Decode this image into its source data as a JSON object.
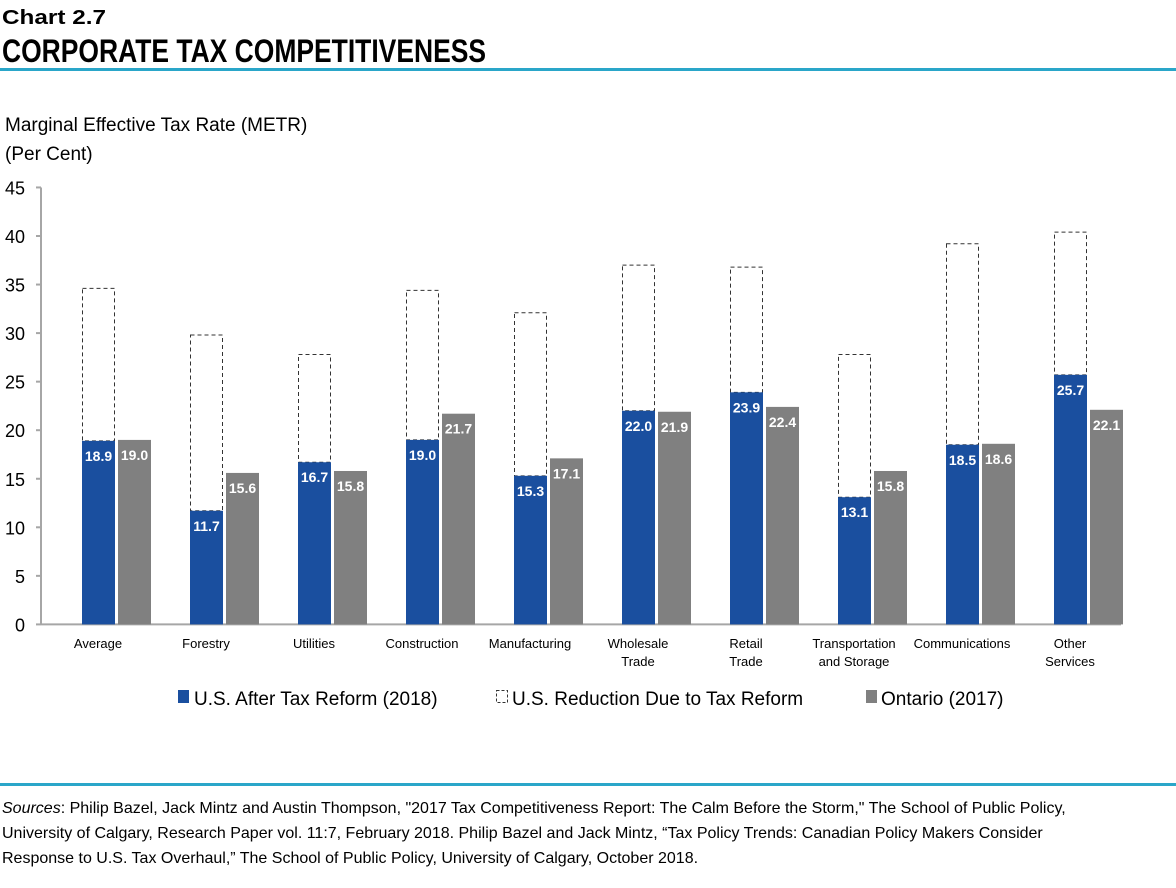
{
  "header": {
    "chart_number": "Chart 2.7",
    "title": "CORPORATE TAX COMPETITIVENESS"
  },
  "colors": {
    "us_after": "#1a4f9f",
    "ontario": "#808080",
    "rule": "#2aa6c9"
  },
  "chart_data": {
    "type": "bar",
    "stacked_first_series": true,
    "ylabel_lines": [
      "Marginal Effective Tax Rate (METR)",
      "(Per Cent)"
    ],
    "ylim": [
      0,
      45
    ],
    "yticks": [
      0,
      5,
      10,
      15,
      20,
      25,
      30,
      35,
      40,
      45
    ],
    "grid": false,
    "legend_position": "bottom",
    "categories": [
      [
        "Average"
      ],
      [
        "Forestry"
      ],
      [
        "Utilities"
      ],
      [
        "Construction"
      ],
      [
        "Manufacturing"
      ],
      [
        "Wholesale",
        "Trade"
      ],
      [
        "Retail",
        "Trade"
      ],
      [
        "Transportation",
        "and Storage"
      ],
      [
        "Communications"
      ],
      [
        "Other",
        "Services"
      ]
    ],
    "series": [
      {
        "name": "U.S. After Tax Reform (2018)",
        "values": [
          18.9,
          11.7,
          16.7,
          19.0,
          15.3,
          22.0,
          23.9,
          13.1,
          18.5,
          25.7
        ]
      },
      {
        "name": "U.S. Reduction Due to Tax Reform",
        "values": [
          15.7,
          18.1,
          11.1,
          15.4,
          16.8,
          15.0,
          12.9,
          14.7,
          20.7,
          14.7
        ]
      },
      {
        "name": "Ontario (2017)",
        "values": [
          19.0,
          15.6,
          15.8,
          21.7,
          17.1,
          21.9,
          22.4,
          15.8,
          18.6,
          22.1
        ]
      }
    ]
  },
  "sources": {
    "label": "Sources",
    "lines": [
      ": Philip Bazel, Jack Mintz and Austin Thompson, \"2017 Tax Competitiveness Report: The Calm Before the Storm,\" The School of Public Policy,",
      "University of Calgary, Research Paper vol. 11:7, February 2018.  Philip Bazel and Jack Mintz, “Tax Policy Trends: Canadian Policy Makers Consider",
      "Response to U.S. Tax Overhaul,” The School of Public Policy, University of Calgary, October 2018."
    ]
  }
}
